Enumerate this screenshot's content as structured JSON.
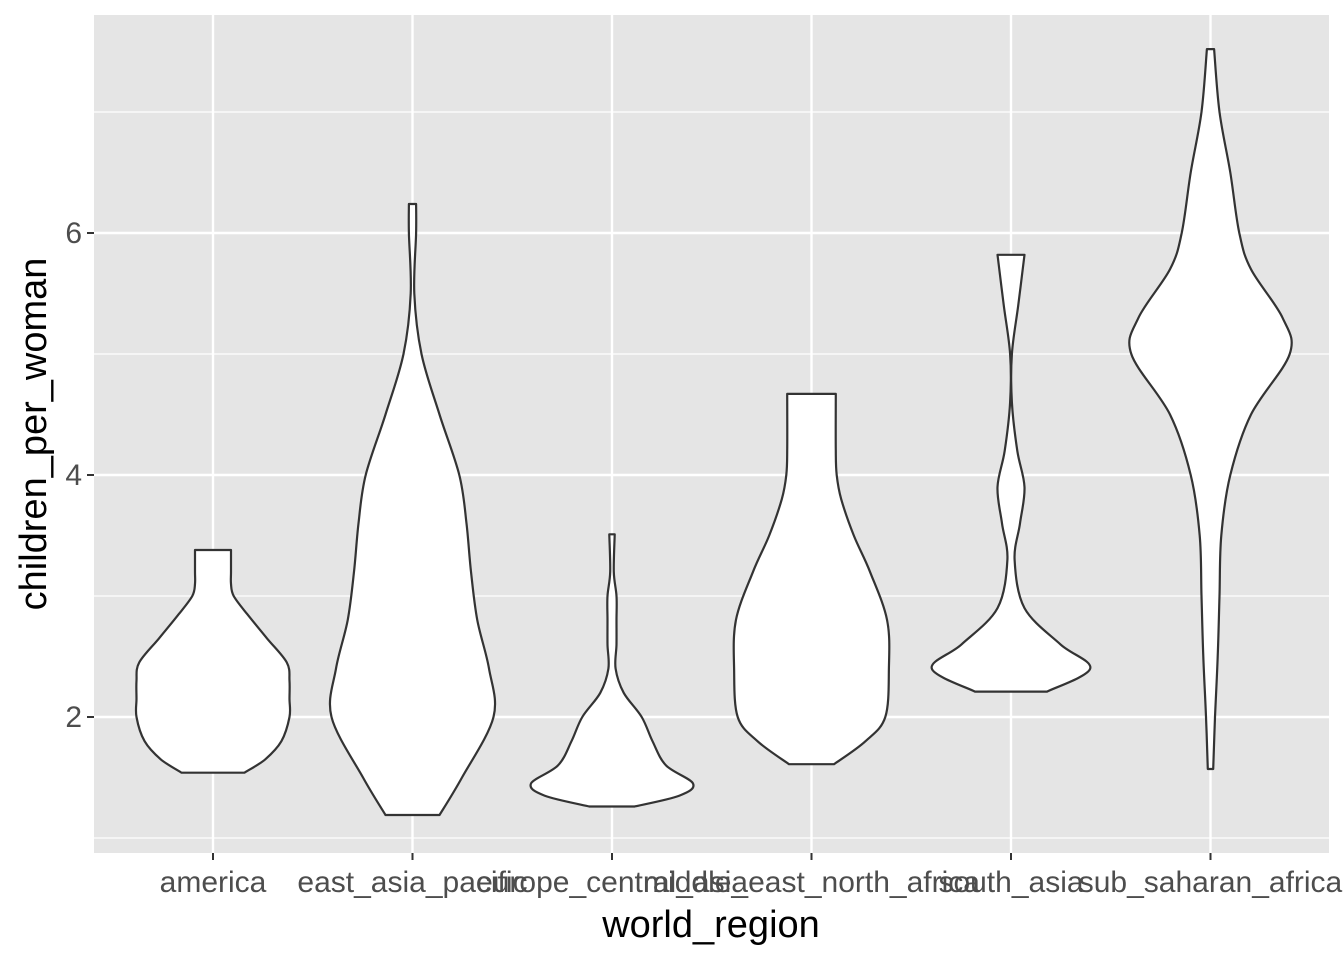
{
  "chart_data": {
    "type": "violin",
    "xlabel": "world_region",
    "ylabel": "children_per_woman",
    "categories": [
      "america",
      "east_asia_pacific",
      "europe_central_asia",
      "middle_east_north_africa",
      "south_asia",
      "sub_saharan_africa"
    ],
    "yticks": [
      2,
      4,
      6
    ],
    "ylim": [
      0.9,
      7.9
    ],
    "grid": true,
    "colors": {
      "panel": "#e5e5e5",
      "grid": "#ffffff",
      "violin_fill": "#ffffff",
      "violin_stroke": "#333333"
    },
    "series": [
      {
        "category": "america",
        "min": 1.54,
        "max": 3.38,
        "profile": [
          [
            1.54,
            0.35
          ],
          [
            1.65,
            0.58
          ],
          [
            1.8,
            0.76
          ],
          [
            2.0,
            0.85
          ],
          [
            2.15,
            0.85
          ],
          [
            2.3,
            0.85
          ],
          [
            2.45,
            0.82
          ],
          [
            2.65,
            0.6
          ],
          [
            2.85,
            0.38
          ],
          [
            3.0,
            0.23
          ],
          [
            3.1,
            0.2
          ],
          [
            3.2,
            0.2
          ],
          [
            3.38,
            0.2
          ]
        ]
      },
      {
        "category": "east_asia_pacific",
        "min": 1.19,
        "max": 6.24,
        "profile": [
          [
            1.19,
            0.3
          ],
          [
            1.5,
            0.55
          ],
          [
            2.0,
            0.9
          ],
          [
            2.4,
            0.85
          ],
          [
            2.8,
            0.72
          ],
          [
            3.2,
            0.65
          ],
          [
            3.6,
            0.6
          ],
          [
            4.0,
            0.52
          ],
          [
            4.5,
            0.3
          ],
          [
            5.0,
            0.1
          ],
          [
            5.5,
            0.02
          ],
          [
            6.0,
            0.04
          ],
          [
            6.24,
            0.04
          ]
        ]
      },
      {
        "category": "europe_central_asia",
        "min": 1.26,
        "max": 3.51,
        "profile": [
          [
            1.26,
            0.25
          ],
          [
            1.35,
            0.75
          ],
          [
            1.45,
            0.9
          ],
          [
            1.6,
            0.6
          ],
          [
            1.8,
            0.45
          ],
          [
            2.0,
            0.33
          ],
          [
            2.2,
            0.13
          ],
          [
            2.4,
            0.04
          ],
          [
            2.6,
            0.05
          ],
          [
            2.8,
            0.05
          ],
          [
            3.0,
            0.05
          ],
          [
            3.2,
            0.02
          ],
          [
            3.51,
            0.03
          ]
        ]
      },
      {
        "category": "middle_east_north_africa",
        "min": 1.61,
        "max": 4.67,
        "profile": [
          [
            1.61,
            0.25
          ],
          [
            1.8,
            0.6
          ],
          [
            2.0,
            0.82
          ],
          [
            2.4,
            0.86
          ],
          [
            2.8,
            0.84
          ],
          [
            3.2,
            0.65
          ],
          [
            3.5,
            0.47
          ],
          [
            3.8,
            0.33
          ],
          [
            4.0,
            0.28
          ],
          [
            4.2,
            0.27
          ],
          [
            4.67,
            0.27
          ]
        ]
      },
      {
        "category": "south_asia",
        "min": 2.21,
        "max": 5.82,
        "profile": [
          [
            2.21,
            0.4
          ],
          [
            2.4,
            0.88
          ],
          [
            2.6,
            0.55
          ],
          [
            2.9,
            0.15
          ],
          [
            3.3,
            0.04
          ],
          [
            3.6,
            0.1
          ],
          [
            3.9,
            0.15
          ],
          [
            4.2,
            0.07
          ],
          [
            4.6,
            0.01
          ],
          [
            5.0,
            0.01
          ],
          [
            5.4,
            0.08
          ],
          [
            5.82,
            0.15
          ]
        ]
      },
      {
        "category": "sub_saharan_africa",
        "min": 1.57,
        "max": 7.52,
        "profile": [
          [
            1.57,
            0.03
          ],
          [
            2.0,
            0.05
          ],
          [
            2.5,
            0.08
          ],
          [
            3.0,
            0.1
          ],
          [
            3.5,
            0.12
          ],
          [
            4.0,
            0.22
          ],
          [
            4.5,
            0.45
          ],
          [
            5.0,
            0.88
          ],
          [
            5.3,
            0.8
          ],
          [
            5.7,
            0.45
          ],
          [
            6.0,
            0.32
          ],
          [
            6.5,
            0.22
          ],
          [
            7.0,
            0.1
          ],
          [
            7.52,
            0.04
          ]
        ]
      }
    ]
  }
}
